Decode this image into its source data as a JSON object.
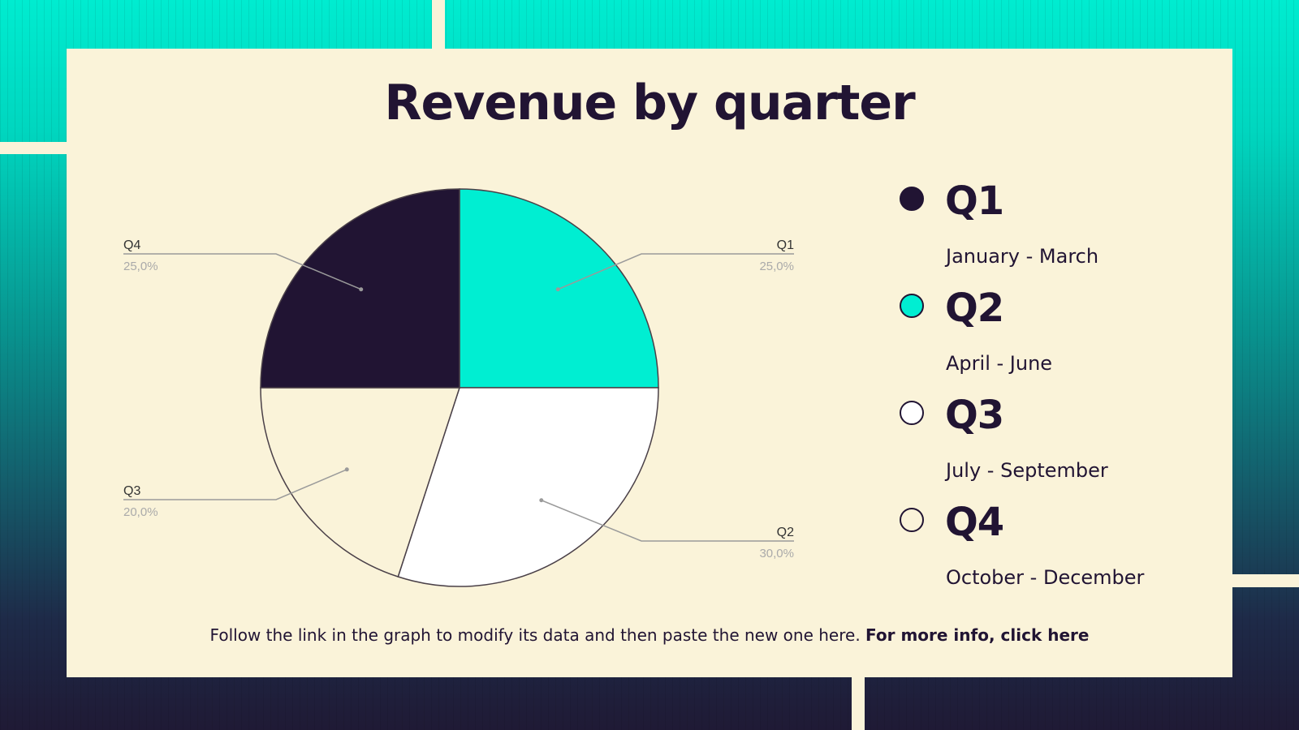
{
  "chart_data": {
    "type": "pie",
    "title": "Revenue by quarter",
    "slices": [
      {
        "label": "Q1",
        "value": 25.0,
        "value_label": "25,0%",
        "color": "#00eed2"
      },
      {
        "label": "Q2",
        "value": 30.0,
        "value_label": "30,0%",
        "color": "#ffffff"
      },
      {
        "label": "Q3",
        "value": 20.0,
        "value_label": "20,0%",
        "color": "#faf3d9"
      },
      {
        "label": "Q4",
        "value": 25.0,
        "value_label": "25,0%",
        "color": "#211433"
      }
    ]
  },
  "legend": [
    {
      "label": "Q1",
      "sub": "January - March",
      "color": "#211433"
    },
    {
      "label": "Q2",
      "sub": "April - June",
      "color": "#00eed2"
    },
    {
      "label": "Q3",
      "sub": "July - September",
      "color": "#ffffff"
    },
    {
      "label": "Q4",
      "sub": "October - December",
      "color": "#faf3d9"
    }
  ],
  "footer": {
    "text": "Follow the link in the graph to modify its data and then paste the new one here.",
    "link": "For more info, click here"
  }
}
